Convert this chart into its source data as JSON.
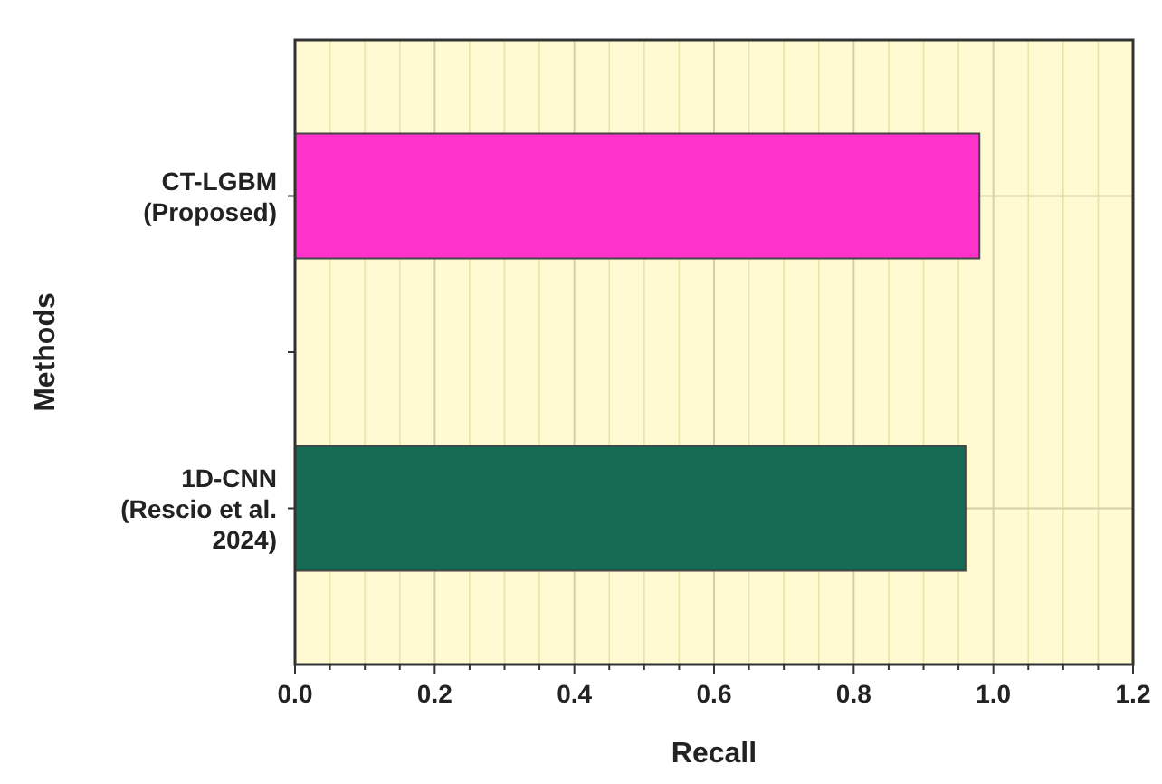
{
  "chart_data": {
    "type": "bar",
    "orientation": "horizontal",
    "xlabel": "Recall",
    "ylabel": "Methods",
    "categories": [
      "CT-LGBM\n(Proposed)",
      "1D-CNN\n(Rescio et al.\n2024)"
    ],
    "values": [
      0.98,
      0.96
    ],
    "colors": [
      "#ff33cc",
      "#166b55"
    ],
    "xlim": [
      0,
      1.2
    ],
    "xticks": [
      {
        "value": 0,
        "label": "0.0"
      },
      {
        "value": 0.05,
        "label": null
      },
      {
        "value": 0.1,
        "label": null
      },
      {
        "value": 0.15,
        "label": null
      },
      {
        "value": 0.2,
        "label": "0.2"
      },
      {
        "value": 0.25,
        "label": null
      },
      {
        "value": 0.3,
        "label": null
      },
      {
        "value": 0.35,
        "label": null
      },
      {
        "value": 0.4,
        "label": "0.4"
      },
      {
        "value": 0.45,
        "label": null
      },
      {
        "value": 0.5,
        "label": null
      },
      {
        "value": 0.55,
        "label": null
      },
      {
        "value": 0.6,
        "label": "0.6"
      },
      {
        "value": 0.65,
        "label": null
      },
      {
        "value": 0.7,
        "label": null
      },
      {
        "value": 0.75,
        "label": null
      },
      {
        "value": 0.8,
        "label": "0.8"
      },
      {
        "value": 0.85,
        "label": null
      },
      {
        "value": 0.9,
        "label": null
      },
      {
        "value": 0.95,
        "label": null
      },
      {
        "value": 1,
        "label": "1.0"
      },
      {
        "value": 1.05,
        "label": null
      },
      {
        "value": 1.1,
        "label": null
      },
      {
        "value": 1.15,
        "label": null
      },
      {
        "value": 1.2,
        "label": "1.2"
      }
    ],
    "grid": true
  }
}
